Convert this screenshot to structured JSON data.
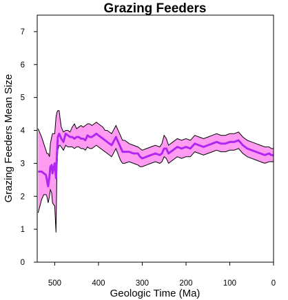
{
  "chart_data": {
    "type": "line",
    "title": "Grazing Feeders",
    "xlabel": "Geologic Time (Ma)",
    "ylabel": "Grazing Feeders Mean Size",
    "xlim": [
      540,
      0
    ],
    "ylim": [
      0,
      7.5
    ],
    "x_ticks": [
      500,
      400,
      300,
      200,
      100,
      0
    ],
    "y_ticks": [
      0,
      1,
      2,
      3,
      4,
      5,
      6,
      7
    ],
    "grid": false,
    "colors": {
      "mean": "#b026f0",
      "band": "#ff9cf2",
      "band_edge": "#000000",
      "axis": "#000000"
    },
    "series": [
      {
        "role": "mean",
        "x": [
          538,
          530,
          525,
          520,
          518,
          515,
          512,
          510,
          507,
          505,
          500,
          497,
          495,
          493,
          490,
          488,
          485,
          480,
          475,
          470,
          465,
          460,
          455,
          450,
          445,
          440,
          435,
          430,
          425,
          420,
          415,
          410,
          405,
          400,
          395,
          390,
          385,
          380,
          375,
          370,
          360,
          350,
          345,
          340,
          330,
          320,
          310,
          305,
          300,
          290,
          280,
          270,
          260,
          255,
          250,
          245,
          240,
          230,
          220,
          210,
          200,
          190,
          180,
          170,
          160,
          150,
          140,
          130,
          120,
          110,
          100,
          90,
          80,
          70,
          60,
          50,
          40,
          30,
          20,
          10,
          5,
          0
        ],
        "y": [
          2.75,
          2.75,
          2.7,
          2.65,
          2.5,
          2.3,
          2.6,
          2.9,
          2.95,
          2.7,
          3.0,
          2.55,
          3.25,
          3.8,
          3.9,
          3.85,
          3.75,
          3.65,
          3.9,
          3.85,
          3.8,
          3.8,
          3.75,
          3.8,
          3.8,
          3.75,
          3.75,
          3.7,
          3.85,
          3.8,
          3.8,
          3.85,
          3.9,
          3.85,
          3.8,
          3.75,
          3.7,
          3.65,
          3.6,
          3.55,
          3.8,
          3.5,
          3.35,
          3.35,
          3.35,
          3.3,
          3.3,
          3.2,
          3.15,
          3.2,
          3.25,
          3.3,
          3.25,
          3.3,
          3.45,
          3.45,
          3.3,
          3.4,
          3.5,
          3.45,
          3.5,
          3.45,
          3.6,
          3.55,
          3.5,
          3.55,
          3.6,
          3.65,
          3.6,
          3.6,
          3.65,
          3.65,
          3.7,
          3.55,
          3.45,
          3.4,
          3.35,
          3.3,
          3.25,
          3.3,
          3.25,
          3.25
        ]
      },
      {
        "role": "upper",
        "x": [
          538,
          530,
          525,
          520,
          518,
          515,
          512,
          510,
          507,
          505,
          500,
          497,
          495,
          493,
          490,
          488,
          485,
          480,
          475,
          470,
          465,
          460,
          455,
          450,
          445,
          440,
          435,
          430,
          425,
          420,
          415,
          410,
          405,
          400,
          395,
          390,
          385,
          380,
          375,
          370,
          360,
          350,
          345,
          340,
          330,
          320,
          310,
          305,
          300,
          290,
          280,
          270,
          260,
          255,
          250,
          245,
          240,
          230,
          220,
          210,
          200,
          190,
          180,
          170,
          160,
          150,
          140,
          130,
          120,
          110,
          100,
          90,
          80,
          70,
          60,
          50,
          40,
          30,
          20,
          10,
          5,
          0
        ],
        "y": [
          4.05,
          3.8,
          3.6,
          3.4,
          3.3,
          3.3,
          3.2,
          3.6,
          3.8,
          3.9,
          3.9,
          4.4,
          4.55,
          4.6,
          4.6,
          4.4,
          4.1,
          3.95,
          4.0,
          4.0,
          3.95,
          4.1,
          4.2,
          4.05,
          4.1,
          4.15,
          4.1,
          4.15,
          4.2,
          4.2,
          4.15,
          4.2,
          4.25,
          4.2,
          4.15,
          4.1,
          4.0,
          4.0,
          3.95,
          3.9,
          4.15,
          3.85,
          3.7,
          3.7,
          3.6,
          3.55,
          3.5,
          3.45,
          3.4,
          3.45,
          3.5,
          3.55,
          3.5,
          3.6,
          3.85,
          3.75,
          3.55,
          3.65,
          3.75,
          3.7,
          3.75,
          3.7,
          3.85,
          3.8,
          3.75,
          3.8,
          3.85,
          3.9,
          3.85,
          3.85,
          3.9,
          3.9,
          3.95,
          3.8,
          3.7,
          3.65,
          3.6,
          3.55,
          3.5,
          3.5,
          3.45,
          3.45
        ]
      },
      {
        "role": "lower",
        "x": [
          538,
          530,
          525,
          520,
          518,
          515,
          512,
          510,
          507,
          505,
          500,
          497,
          495,
          493,
          490,
          488,
          485,
          480,
          475,
          470,
          465,
          460,
          455,
          450,
          445,
          440,
          435,
          430,
          425,
          420,
          415,
          410,
          405,
          400,
          395,
          390,
          385,
          380,
          375,
          370,
          360,
          350,
          345,
          340,
          330,
          320,
          310,
          305,
          300,
          290,
          280,
          270,
          260,
          255,
          250,
          245,
          240,
          230,
          220,
          210,
          200,
          190,
          180,
          170,
          160,
          150,
          140,
          130,
          120,
          110,
          100,
          90,
          80,
          70,
          60,
          50,
          40,
          30,
          20,
          10,
          5,
          0
        ],
        "y": [
          1.5,
          1.9,
          2.05,
          2.05,
          2.0,
          1.8,
          2.0,
          2.2,
          2.1,
          1.8,
          1.7,
          0.9,
          2.8,
          3.4,
          3.55,
          3.55,
          3.5,
          3.4,
          3.55,
          3.5,
          3.5,
          3.5,
          3.45,
          3.5,
          3.5,
          3.45,
          3.45,
          3.4,
          3.5,
          3.45,
          3.45,
          3.5,
          3.55,
          3.5,
          3.45,
          3.4,
          3.35,
          3.3,
          3.25,
          3.2,
          3.45,
          3.1,
          3.0,
          3.0,
          3.05,
          3.0,
          2.95,
          2.9,
          2.9,
          2.95,
          3.0,
          3.05,
          3.0,
          3.05,
          3.2,
          3.15,
          3.0,
          3.1,
          3.2,
          3.15,
          3.2,
          3.2,
          3.35,
          3.3,
          3.25,
          3.3,
          3.35,
          3.4,
          3.35,
          3.35,
          3.4,
          3.4,
          3.45,
          3.3,
          3.2,
          3.15,
          3.1,
          3.05,
          3.0,
          3.05,
          3.05,
          3.05
        ]
      }
    ]
  }
}
